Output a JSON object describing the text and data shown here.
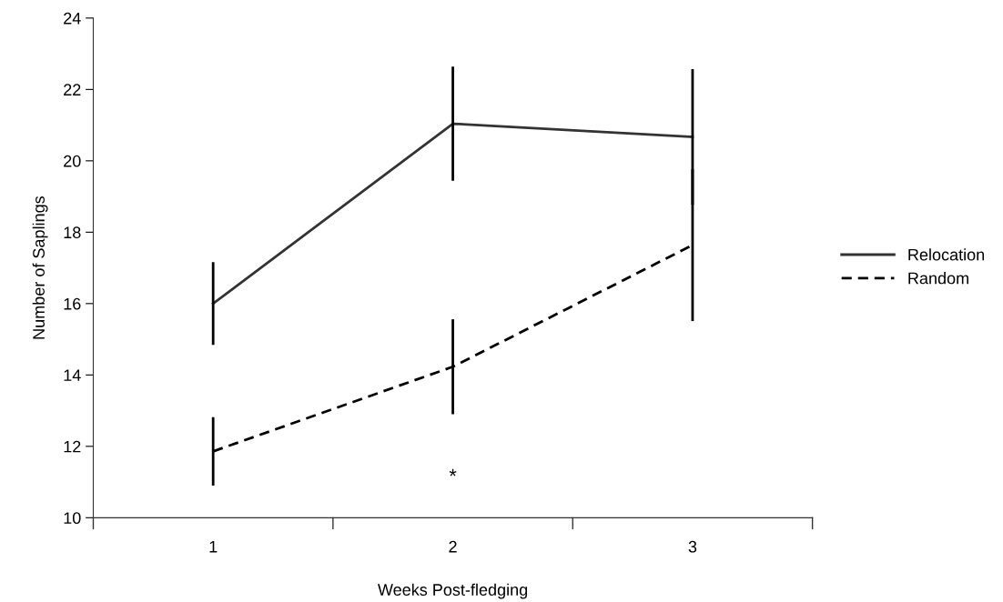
{
  "chart_data": {
    "type": "line",
    "xlabel": "Weeks Post-fledging",
    "ylabel": "Number of Saplings",
    "categories": [
      "1",
      "2",
      "3"
    ],
    "series": [
      {
        "name": "Relocation",
        "color": "#333333",
        "line_style": "solid",
        "values": [
          16.0,
          21.04,
          20.67
        ],
        "errors": [
          1.16,
          1.6,
          1.9
        ]
      },
      {
        "name": "Random",
        "color": "#000000",
        "line_style": "dashed",
        "values": [
          11.86,
          14.23,
          17.64
        ],
        "errors": [
          0.96,
          1.33,
          2.13
        ]
      }
    ],
    "ylim": [
      10,
      24
    ],
    "yticks": [
      10,
      12,
      14,
      16,
      18,
      20,
      22,
      24
    ],
    "annotations": [
      "*"
    ],
    "grid": false,
    "legend": "right",
    "marker": "none"
  }
}
